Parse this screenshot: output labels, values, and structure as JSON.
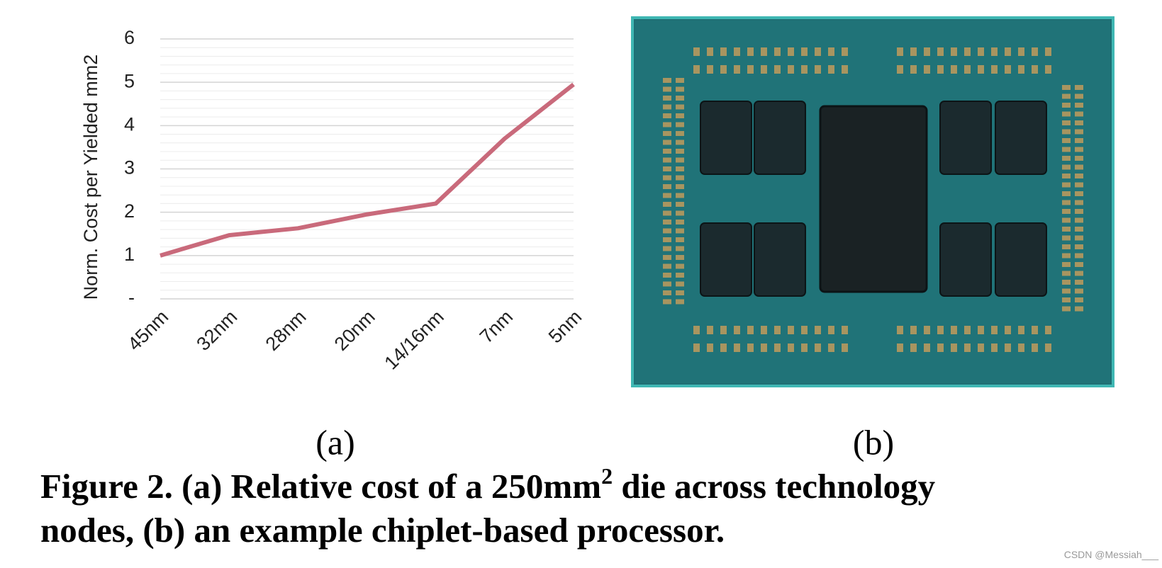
{
  "chart_data": {
    "type": "line",
    "y_label": "Norm. Cost per Yielded mm2",
    "categories": [
      "45nm",
      "32nm",
      "28nm",
      "20nm",
      "14/16nm",
      "7nm",
      "5nm"
    ],
    "values": [
      1.0,
      1.47,
      1.63,
      1.95,
      2.2,
      3.7,
      4.95
    ],
    "color": "#c96a7b",
    "ylim": [
      0,
      6
    ],
    "yticks": [
      {
        "value": 0,
        "label": "-"
      },
      1,
      2,
      3,
      4,
      5,
      6
    ],
    "grid": true,
    "minor_grid": true
  },
  "panel_labels": [
    "(a)",
    "(b)"
  ],
  "caption": {
    "line1_before": "Figure 2. (a) Relative cost of a 250mm",
    "superscript": "2",
    "line1_after": " die across technology",
    "line2": "nodes, (b) an example chiplet-based processor."
  },
  "watermark": "CSDN @Messiah___"
}
